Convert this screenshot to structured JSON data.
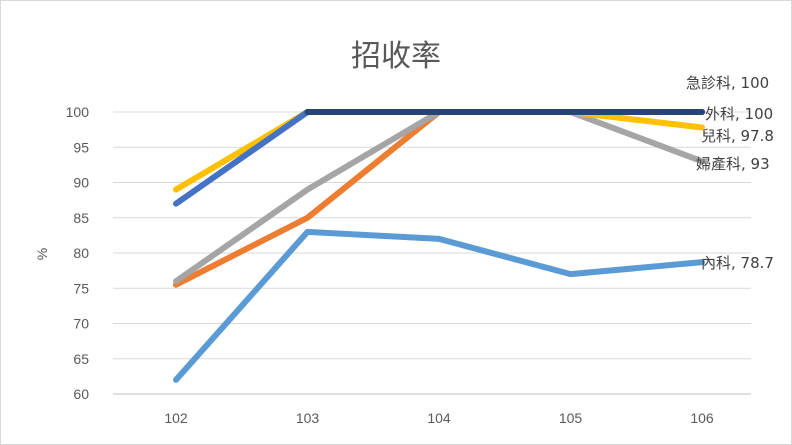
{
  "chart_data": {
    "type": "line",
    "title": "招收率",
    "xlabel": "",
    "ylabel": "%",
    "categories": [
      "102",
      "103",
      "104",
      "105",
      "106"
    ],
    "ylim": [
      60,
      100
    ],
    "yticks": [
      60,
      65,
      70,
      75,
      80,
      85,
      90,
      95,
      100
    ],
    "grid": true,
    "legend": "none",
    "series": [
      {
        "name": "內科",
        "color": "#5b9bd5",
        "values": [
          62,
          83,
          82,
          77,
          78.7
        ],
        "end_label": "內科, 78.7"
      },
      {
        "name": "婦產科",
        "color": "#ed7d31",
        "values": [
          75.5,
          85,
          100,
          100,
          100
        ],
        "end_label": ""
      },
      {
        "name": "婦產科",
        "color": "#a5a5a5",
        "values": [
          76,
          89,
          100,
          100,
          93
        ],
        "end_label": "婦產科, 93"
      },
      {
        "name": "兒科",
        "color": "#ffc000",
        "values": [
          89,
          100,
          100,
          100,
          97.8
        ],
        "end_label": "兒科, 97.8"
      },
      {
        "name": "外科",
        "color": "#4472c4",
        "values": [
          87,
          100,
          100,
          100,
          100
        ],
        "end_label": "外科, 100"
      },
      {
        "name": "急診科",
        "color": "#264478",
        "values": [
          null,
          100,
          100,
          100,
          100
        ],
        "end_label": "急診科, 100"
      }
    ]
  }
}
